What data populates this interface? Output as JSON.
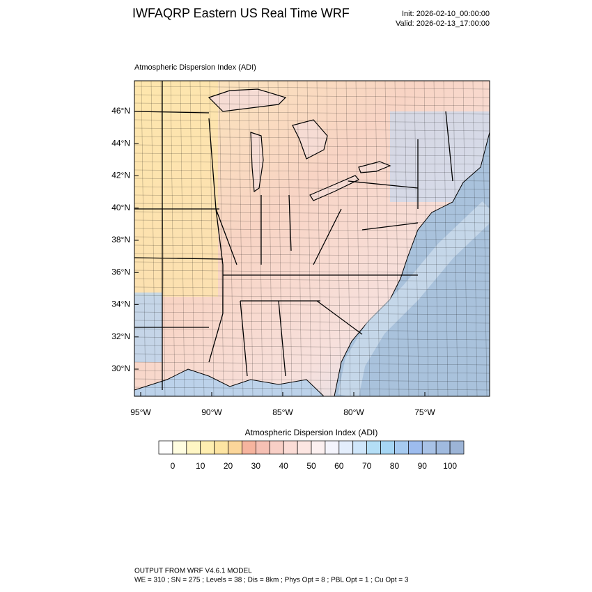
{
  "header": {
    "title": "IWFAQRP Eastern US Real Time WRF",
    "init": "Init: 2026-02-10_00:00:00",
    "valid": "Valid: 2026-02-13_17:00:00"
  },
  "map": {
    "subtitle": "Atmospheric Dispersion Index   (ADI)",
    "lat_labels": [
      "46°N",
      "44°N",
      "42°N",
      "40°N",
      "38°N",
      "36°N",
      "34°N",
      "32°N",
      "30°N"
    ],
    "lon_labels": [
      "95°W",
      "90°W",
      "85°W",
      "80°W",
      "75°W"
    ]
  },
  "colorbar": {
    "title": "Atmospheric Dispersion Index  (ADI)",
    "ticks": [
      0,
      10,
      20,
      30,
      40,
      50,
      60,
      70,
      80,
      90,
      100
    ],
    "colors": [
      "#ffffff",
      "#fffde0",
      "#fff6c4",
      "#ffeeb0",
      "#fde4a2",
      "#fbd69a",
      "#f6b49e",
      "#f5c0b4",
      "#f8cfc6",
      "#fbdcd6",
      "#fde6e2",
      "#fcf0f0",
      "#f4f4fc",
      "#e4eefc",
      "#cfe6fa",
      "#b4def6",
      "#a6d6f4",
      "#a6caf0",
      "#9dbcee",
      "#a8c2e6",
      "#a0bade",
      "#9cb4d6"
    ]
  },
  "footer": {
    "line1": "OUTPUT FROM WRF V4.6.1 MODEL",
    "line2": "WE = 310 ; SN = 275 ; Levels = 38 ; Dis = 8km ; Phys Opt = 8 ; PBL Opt = 1 ; Cu Opt = 3"
  }
}
